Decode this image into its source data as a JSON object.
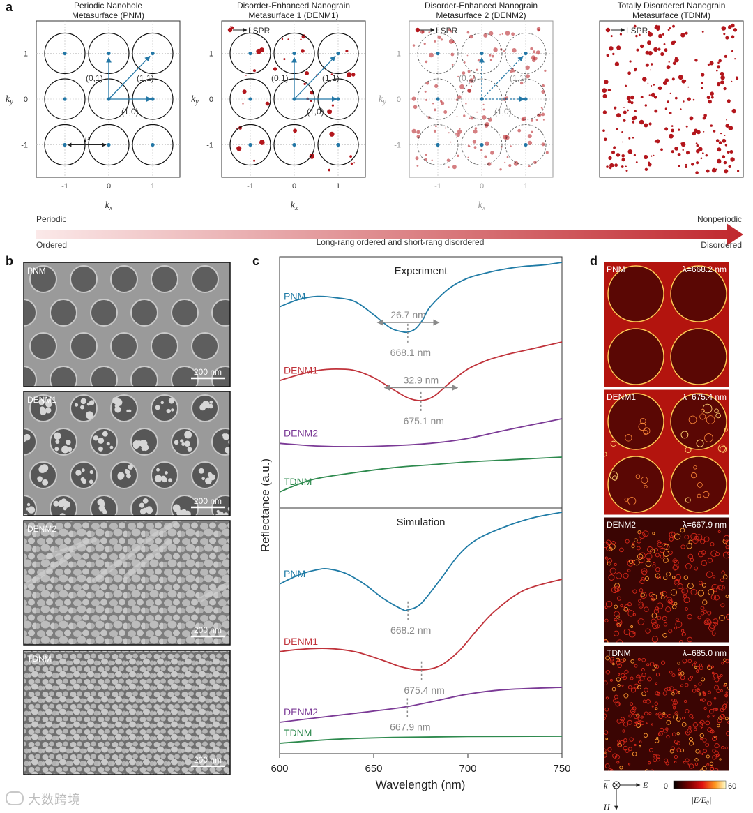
{
  "panels": {
    "a": {
      "letter": "a",
      "maps": [
        {
          "title_lines": [
            "Periodic Nanohole",
            "Metasurface (PNM)"
          ],
          "axes": true,
          "faded": false,
          "lspr": "",
          "vectors": true,
          "dashed_circles": false,
          "grains": 0,
          "circles": true
        },
        {
          "title_lines": [
            "Disorder-Enhanced Nanograin",
            "Metasurface 1 (DENM1)"
          ],
          "axes": true,
          "faded": false,
          "lspr": "LSPR",
          "vectors": true,
          "dashed_circles": false,
          "grains": 40,
          "circles": true
        },
        {
          "title_lines": [
            "Disorder-Enhanced Nanograin",
            "Metasurface 2 (DENM2)"
          ],
          "axes": true,
          "faded": true,
          "lspr": "LSPR",
          "vectors": true,
          "dashed_circles": true,
          "grains": 150,
          "circles": true
        },
        {
          "title_lines": [
            "Totally Disordered Nanograin",
            "Metasurface (TDNM)"
          ],
          "axes": false,
          "faded": false,
          "lspr": "LSPR",
          "vectors": false,
          "dashed_circles": false,
          "grains": 230,
          "circles": false
        }
      ],
      "ticks": [
        "-1",
        "0",
        "1"
      ],
      "xlabel": "k",
      "xlabel_sub": "x",
      "ylabel": "k",
      "ylabel_sub": "y",
      "vector_labels": [
        "(0,1)",
        "(1,1)",
        "(1,0)"
      ],
      "period_label": "P",
      "arrow_bar": {
        "left_top": "Periodic",
        "left_bottom": "Ordered",
        "center": "Long-rang ordered and short-rang disordered",
        "right_top": "Nonperiodic",
        "right_bottom": "Disordered",
        "color_start": "#fbe9e9",
        "color_end": "#c0272d"
      }
    },
    "b": {
      "letter": "b",
      "images": [
        {
          "label": "PNM",
          "scalebar": "200 nm"
        },
        {
          "label": "DENM1",
          "scalebar": "200 nm"
        },
        {
          "label": "DENM2",
          "scalebar": "200 nm"
        },
        {
          "label": "TDNM",
          "scalebar": "200 nm"
        }
      ]
    },
    "d": {
      "letter": "d",
      "maps": [
        {
          "label": "PNM",
          "wavelength": "λ=668.2 nm"
        },
        {
          "label": "DENM1",
          "wavelength": "λ=675.4 nm"
        },
        {
          "label": "DENM2",
          "wavelength": "λ=667.9 nm"
        },
        {
          "label": "TDNM",
          "wavelength": "λ=685.0 nm"
        }
      ],
      "colorbar": {
        "min": "0",
        "max": "60",
        "label": "|E/E₀|"
      },
      "field_labels": {
        "k": "k",
        "e": "E",
        "h": "H"
      }
    }
  },
  "chart_data": {
    "type": "line",
    "letter": "c",
    "xlabel": "Wavelength (nm)",
    "ylabel": "Reflectance (a.u.)",
    "xlim": [
      600,
      750
    ],
    "xticks": [
      "600",
      "650",
      "700",
      "750"
    ],
    "colors": {
      "PNM": "#1f7ba6",
      "DENM1": "#c0323a",
      "DENM2": "#7b3a96",
      "TDNM": "#2e8a4e",
      "annotation": "#8a8a8a"
    },
    "panels": [
      {
        "title": "Experiment",
        "series": [
          {
            "name": "PNM",
            "x": [
              600,
              610,
              620,
              630,
              640,
              650,
              655,
              660,
              665,
              668,
              672,
              676,
              680,
              690,
              700,
              710,
              720,
              730,
              740,
              750
            ],
            "y": [
              0.83,
              0.858,
              0.87,
              0.865,
              0.85,
              0.8,
              0.77,
              0.745,
              0.735,
              0.733,
              0.745,
              0.78,
              0.83,
              0.9,
              0.94,
              0.96,
              0.975,
              0.985,
              0.99,
              1.0
            ]
          },
          {
            "name": "DENM1",
            "x": [
              600,
              610,
              620,
              630,
              640,
              650,
              660,
              668,
              675,
              682,
              690,
              700,
              710,
              720,
              730,
              740,
              750
            ],
            "y": [
              0.5,
              0.52,
              0.535,
              0.54,
              0.535,
              0.51,
              0.47,
              0.44,
              0.43,
              0.445,
              0.49,
              0.54,
              0.57,
              0.59,
              0.605,
              0.62,
              0.635
            ]
          },
          {
            "name": "DENM2",
            "x": [
              600,
              620,
              640,
              660,
              680,
              700,
              720,
              750
            ],
            "y": [
              0.2,
              0.192,
              0.19,
              0.193,
              0.2,
              0.215,
              0.24,
              0.275
            ]
          },
          {
            "name": "TDNM",
            "x": [
              600,
              610,
              620,
              640,
              660,
              680,
              700,
              720,
              750
            ],
            "y": [
              0.0,
              0.04,
              0.07,
              0.1,
              0.125,
              0.14,
              0.155,
              0.165,
              0.18
            ]
          }
        ],
        "labels": [
          "PNM",
          "DENM1",
          "DENM2",
          "TDNM"
        ],
        "annotations": [
          {
            "series": "PNM",
            "x": 668.1,
            "text": "668.1 nm",
            "fwhm": "26.7 nm",
            "fwhm_from": 655,
            "fwhm_to": 681.7
          },
          {
            "series": "DENM1",
            "x": 675.1,
            "text": "675.1 nm",
            "fwhm": "32.9 nm",
            "fwhm_from": 658.7,
            "fwhm_to": 691.6
          }
        ]
      },
      {
        "title": "Simulation",
        "series": [
          {
            "name": "PNM",
            "x": [
              600,
              610,
              620,
              626,
              635,
              645,
              655,
              665,
              668,
              675,
              685,
              695,
              705,
              720,
              735,
              750
            ],
            "y": [
              0.86,
              0.885,
              0.9,
              0.902,
              0.89,
              0.86,
              0.82,
              0.79,
              0.788,
              0.805,
              0.87,
              0.94,
              0.985,
              1.02,
              1.045,
              1.06
            ]
          },
          {
            "name": "DENM1",
            "x": [
              600,
              610,
              625,
              640,
              655,
              665,
              675,
              685,
              695,
              705,
              715,
              730,
              750
            ],
            "y": [
              0.6,
              0.61,
              0.615,
              0.6,
              0.56,
              0.53,
              0.517,
              0.535,
              0.6,
              0.7,
              0.79,
              0.88,
              0.93
            ]
          },
          {
            "name": "DENM2",
            "x": [
              600,
              620,
              640,
              660,
              668,
              680,
              700,
              720,
              750
            ],
            "y": [
              0.2,
              0.22,
              0.24,
              0.26,
              0.27,
              0.29,
              0.325,
              0.345,
              0.355
            ]
          },
          {
            "name": "TDNM",
            "x": [
              600,
              630,
              660,
              700,
              750
            ],
            "y": [
              0.115,
              0.128,
              0.134,
              0.137,
              0.138
            ]
          }
        ],
        "labels": [
          "PNM",
          "DENM1",
          "DENM2",
          "TDNM"
        ],
        "annotations": [
          {
            "series": "PNM",
            "x": 668.2,
            "text": "668.2 nm"
          },
          {
            "series": "DENM1",
            "x": 675.4,
            "text": "675.4 nm"
          },
          {
            "series": "DENM2",
            "x": 667.9,
            "text": "667.9 nm"
          }
        ]
      }
    ]
  },
  "watermark": "大数跨境"
}
